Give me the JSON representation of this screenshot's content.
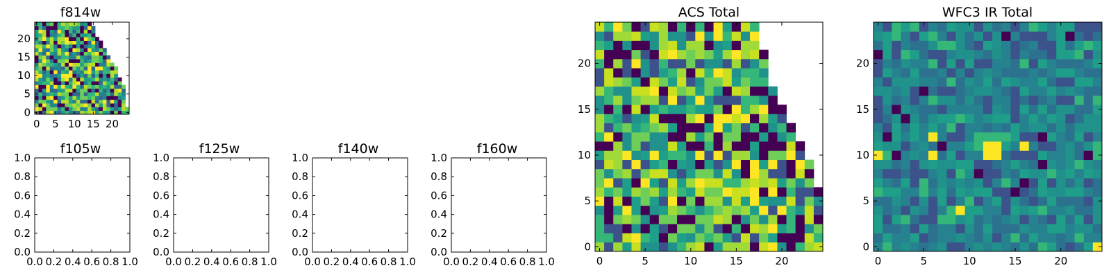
{
  "chart_data": [
    {
      "type": "heatmap",
      "title": "f814w",
      "grid_size": 25,
      "xticks": [
        "0",
        "5",
        "10",
        "15",
        "20"
      ],
      "yticks": [
        "0",
        "5",
        "10",
        "15",
        "20"
      ],
      "row_lengths": [
        25,
        25,
        24,
        24,
        24,
        24,
        24,
        24,
        23,
        23,
        22,
        22,
        22,
        21,
        20,
        20,
        19,
        19,
        18,
        18,
        17,
        16,
        16,
        16,
        15
      ],
      "colors": [
        "#440154",
        "#31688e",
        "#26828e",
        "#1f9e89",
        "#35b779",
        "#6ece58",
        "#b5de2b",
        "#fde725"
      ],
      "seed": 814
    },
    {
      "type": "heatmap",
      "title": "f105w",
      "empty": true,
      "xlim": [
        0,
        1
      ],
      "ylim": [
        0,
        1
      ],
      "xticks": [
        "0.0",
        "0.2",
        "0.4",
        "0.6",
        "0.8",
        "1.0"
      ],
      "yticks": [
        "0.0",
        "0.2",
        "0.4",
        "0.6",
        "0.8",
        "1.0"
      ]
    },
    {
      "type": "heatmap",
      "title": "f125w",
      "empty": true,
      "xlim": [
        0,
        1
      ],
      "ylim": [
        0,
        1
      ],
      "xticks": [
        "0.0",
        "0.2",
        "0.4",
        "0.6",
        "0.8",
        "1.0"
      ],
      "yticks": [
        "0.0",
        "0.2",
        "0.4",
        "0.6",
        "0.8",
        "1.0"
      ]
    },
    {
      "type": "heatmap",
      "title": "f140w",
      "empty": true,
      "xlim": [
        0,
        1
      ],
      "ylim": [
        0,
        1
      ],
      "xticks": [
        "0.0",
        "0.2",
        "0.4",
        "0.6",
        "0.8",
        "1.0"
      ],
      "yticks": [
        "0.0",
        "0.2",
        "0.4",
        "0.6",
        "0.8",
        "1.0"
      ]
    },
    {
      "type": "heatmap",
      "title": "f160w",
      "empty": true,
      "xlim": [
        0,
        1
      ],
      "ylim": [
        0,
        1
      ],
      "xticks": [
        "0.0",
        "0.2",
        "0.4",
        "0.6",
        "0.8",
        "1.0"
      ],
      "yticks": [
        "0.0",
        "0.2",
        "0.4",
        "0.6",
        "0.8",
        "1.0"
      ]
    },
    {
      "type": "heatmap",
      "title": "ACS Total",
      "grid_size": 25,
      "xticks": [
        "0",
        "5",
        "10",
        "15",
        "20"
      ],
      "yticks": [
        "0",
        "5",
        "10",
        "15",
        "20"
      ],
      "row_lengths": [
        25,
        25,
        25,
        25,
        25,
        25,
        25,
        24,
        24,
        24,
        23,
        23,
        22,
        22,
        21,
        21,
        20,
        20,
        19,
        19,
        19,
        19,
        18,
        18,
        18
      ],
      "colors": [
        "#440154",
        "#3b528b",
        "#21918c",
        "#1f9e89",
        "#35b779",
        "#6ece58",
        "#a0da39",
        "#c8e020",
        "#fde725"
      ],
      "seed": 1234
    },
    {
      "type": "heatmap",
      "title": "WFC3 IR Total",
      "grid_size": 25,
      "xticks": [
        "0",
        "5",
        "10",
        "15",
        "20"
      ],
      "yticks": [
        "0",
        "5",
        "10",
        "15",
        "20"
      ],
      "colors": [
        "#440154",
        "#3b528b",
        "#2c728e",
        "#26828e",
        "#21918c",
        "#1f9e89",
        "#35b779",
        "#6ece58",
        "#fde725"
      ],
      "seed": 3160
    }
  ]
}
